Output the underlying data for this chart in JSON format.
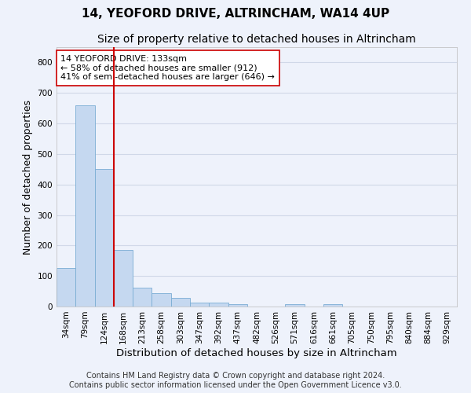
{
  "title": "14, YEOFORD DRIVE, ALTRINCHAM, WA14 4UP",
  "subtitle": "Size of property relative to detached houses in Altrincham",
  "xlabel": "Distribution of detached houses by size in Altrincham",
  "ylabel": "Number of detached properties",
  "bar_color": "#c5d8f0",
  "bar_edge_color": "#7aadd4",
  "background_color": "#eef2fb",
  "grid_color": "#d0d8e8",
  "categories": [
    "34sqm",
    "79sqm",
    "124sqm",
    "168sqm",
    "213sqm",
    "258sqm",
    "303sqm",
    "347sqm",
    "392sqm",
    "437sqm",
    "482sqm",
    "526sqm",
    "571sqm",
    "616sqm",
    "661sqm",
    "705sqm",
    "750sqm",
    "795sqm",
    "840sqm",
    "884sqm",
    "929sqm"
  ],
  "values": [
    125,
    660,
    450,
    185,
    62,
    44,
    28,
    12,
    14,
    8,
    0,
    0,
    8,
    0,
    8,
    0,
    0,
    0,
    0,
    0,
    0
  ],
  "ylim": [
    0,
    850
  ],
  "yticks": [
    0,
    100,
    200,
    300,
    400,
    500,
    600,
    700,
    800
  ],
  "property_line_index": 2,
  "property_line_color": "#cc0000",
  "annotation_text": "14 YEOFORD DRIVE: 133sqm\n← 58% of detached houses are smaller (912)\n41% of semi-detached houses are larger (646) →",
  "annotation_box_color": "#ffffff",
  "annotation_box_edge_color": "#cc0000",
  "footer_line1": "Contains HM Land Registry data © Crown copyright and database right 2024.",
  "footer_line2": "Contains public sector information licensed under the Open Government Licence v3.0.",
  "title_fontsize": 11,
  "subtitle_fontsize": 10,
  "annotation_fontsize": 8,
  "tick_fontsize": 7.5,
  "ylabel_fontsize": 9,
  "xlabel_fontsize": 9.5,
  "footer_fontsize": 7
}
